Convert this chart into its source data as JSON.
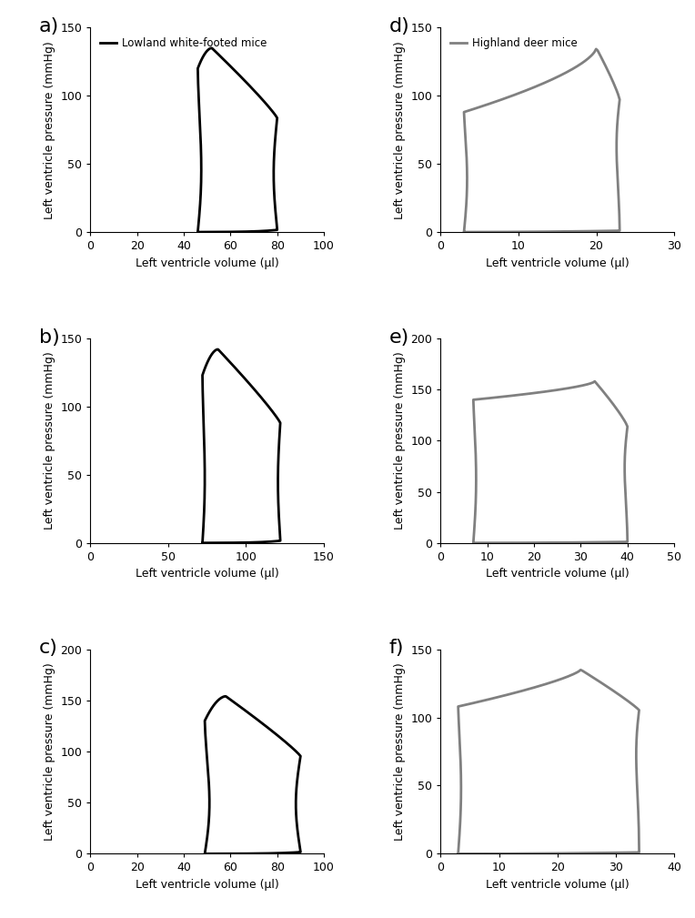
{
  "panels": [
    {
      "label": "a",
      "color": "#000000",
      "linewidth": 2.0,
      "xlim": [
        0,
        100
      ],
      "ylim": [
        0,
        150
      ],
      "xticks": [
        0,
        20,
        40,
        60,
        80,
        100
      ],
      "yticks": [
        0,
        50,
        100,
        150
      ],
      "legend": "Lowland white-footed mice",
      "loop": {
        "esv": 46,
        "edv": 80,
        "esp": 120,
        "edp": 2,
        "peak_p": 135,
        "peak_v": 52,
        "ivc_curve": 1.5,
        "ivr_curve": 1.5,
        "shape": "rectangular"
      }
    },
    {
      "label": "b",
      "color": "#000000",
      "linewidth": 2.0,
      "xlim": [
        0,
        150
      ],
      "ylim": [
        0,
        150
      ],
      "xticks": [
        0,
        50,
        100,
        150
      ],
      "yticks": [
        0,
        50,
        100,
        150
      ],
      "legend": null,
      "loop": {
        "esv": 72,
        "edv": 122,
        "esp": 123,
        "edp": 2,
        "peak_p": 142,
        "peak_v": 82,
        "ivc_curve": 1.5,
        "ivr_curve": 1.5,
        "shape": "rectangular"
      }
    },
    {
      "label": "c",
      "color": "#000000",
      "linewidth": 2.0,
      "xlim": [
        0,
        100
      ],
      "ylim": [
        0,
        200
      ],
      "xticks": [
        0,
        20,
        40,
        60,
        80,
        100
      ],
      "yticks": [
        0,
        50,
        100,
        150,
        200
      ],
      "legend": null,
      "loop": {
        "esv": 49,
        "edv": 90,
        "esp": 130,
        "edp": 2,
        "peak_p": 154,
        "peak_v": 58,
        "ivc_curve": 2.0,
        "ivr_curve": 2.0,
        "shape": "rectangular"
      }
    },
    {
      "label": "d",
      "color": "#808080",
      "linewidth": 2.0,
      "xlim": [
        0,
        30
      ],
      "ylim": [
        0,
        150
      ],
      "xticks": [
        0,
        10,
        20,
        30
      ],
      "yticks": [
        0,
        50,
        100,
        150
      ],
      "legend": "Highland deer mice",
      "loop": {
        "esv": 3,
        "edv": 23,
        "esp": 88,
        "edp": 2,
        "peak_p": 135,
        "peak_v": 20,
        "ivc_curve": 0.4,
        "ivr_curve": 0.4,
        "shape": "triangular"
      }
    },
    {
      "label": "e",
      "color": "#808080",
      "linewidth": 2.0,
      "xlim": [
        0,
        50
      ],
      "ylim": [
        0,
        200
      ],
      "xticks": [
        0,
        10,
        20,
        30,
        40,
        50
      ],
      "yticks": [
        0,
        50,
        100,
        150,
        200
      ],
      "legend": null,
      "loop": {
        "esv": 7,
        "edv": 40,
        "esp": 140,
        "edp": 2,
        "peak_p": 158,
        "peak_v": 33,
        "ivc_curve": 0.6,
        "ivr_curve": 0.6,
        "shape": "triangular"
      }
    },
    {
      "label": "f",
      "color": "#808080",
      "linewidth": 2.0,
      "xlim": [
        0,
        40
      ],
      "ylim": [
        0,
        150
      ],
      "xticks": [
        0,
        10,
        20,
        30,
        40
      ],
      "yticks": [
        0,
        50,
        100,
        150
      ],
      "legend": null,
      "loop": {
        "esv": 3,
        "edv": 34,
        "esp": 108,
        "edp": 2,
        "peak_p": 135,
        "peak_v": 24,
        "ivc_curve": 0.5,
        "ivr_curve": 0.5,
        "shape": "triangular_rounded"
      }
    }
  ],
  "ylabel": "Left ventricle pressure (mmHg)",
  "xlabel": "Left ventricle volume (μl)",
  "background_color": "#ffffff",
  "label_fontsize": 16,
  "tick_fontsize": 9,
  "axis_label_fontsize": 9
}
